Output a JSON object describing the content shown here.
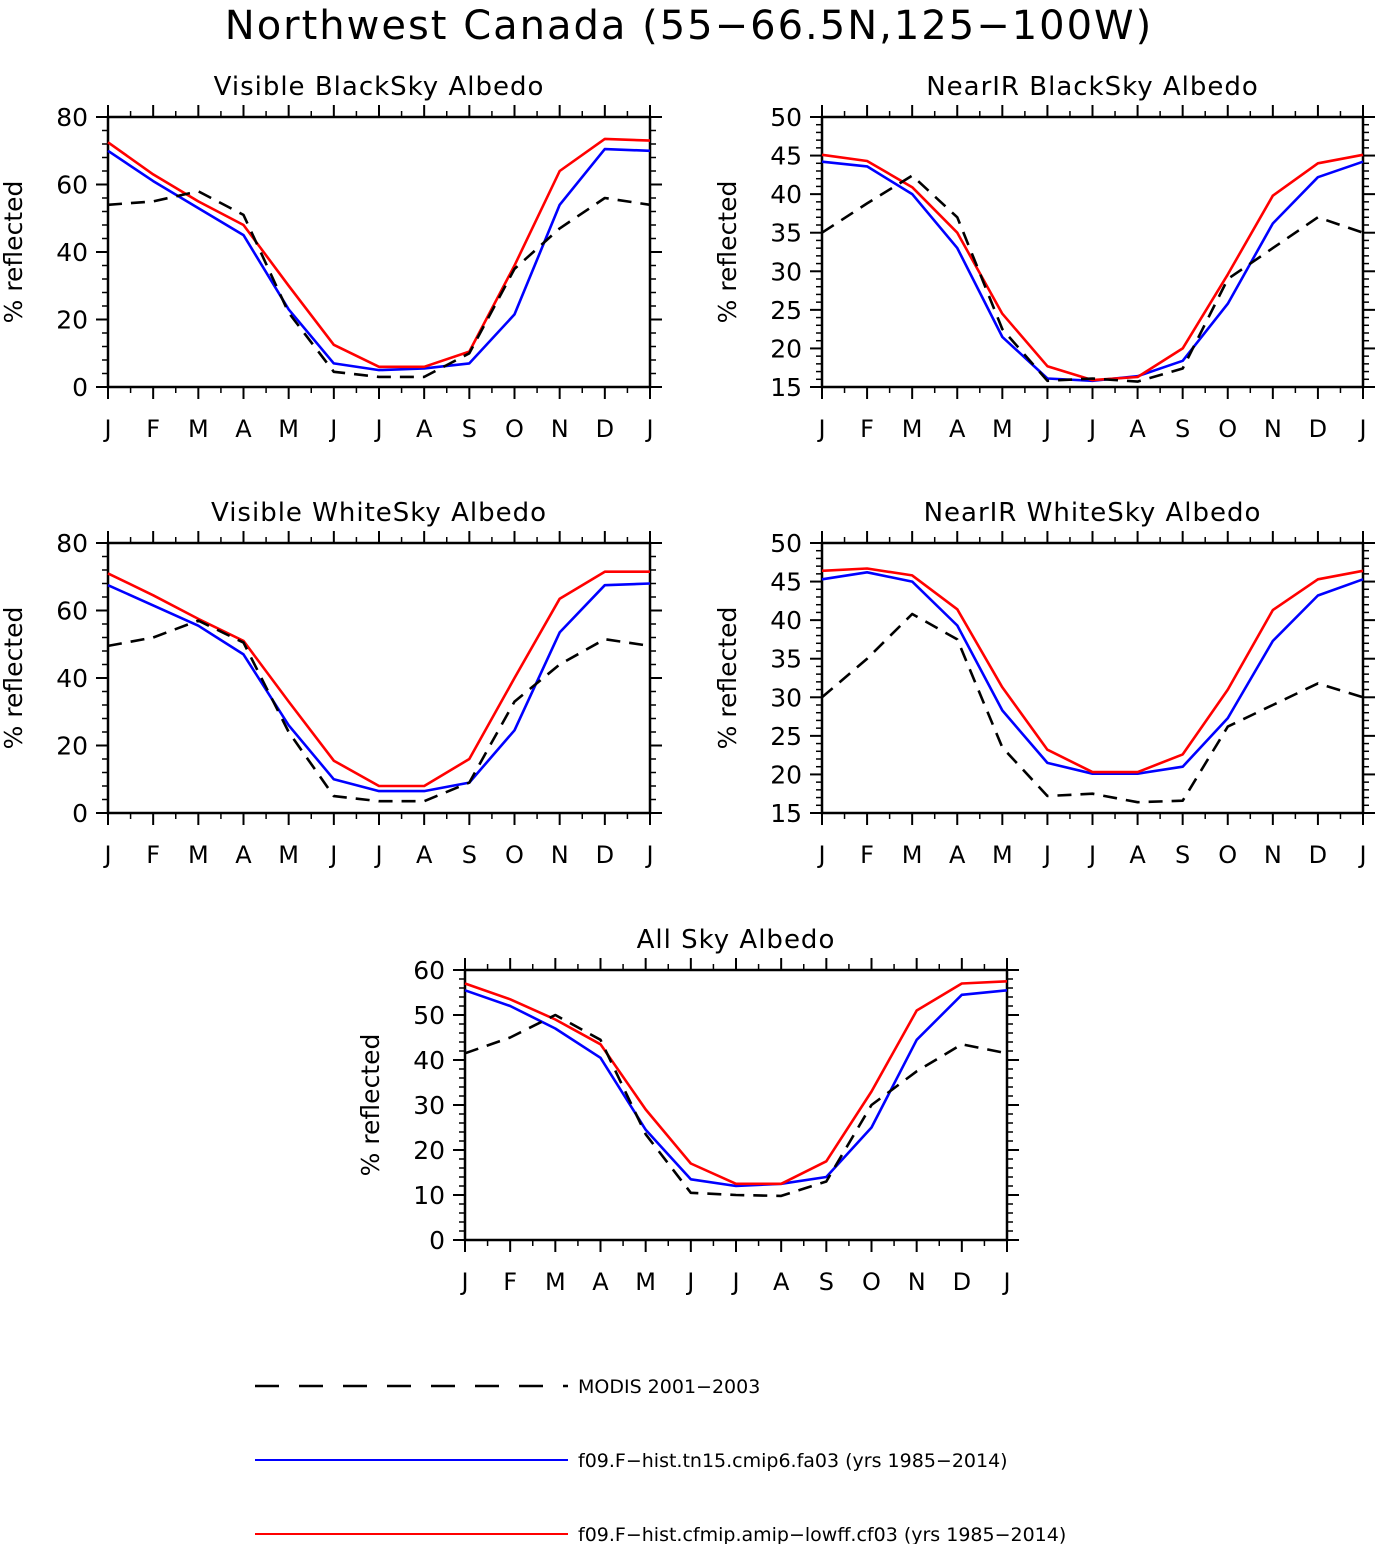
{
  "figure": {
    "title": "Northwest Canada (55−66.5N,125−100W)",
    "months": [
      "J",
      "F",
      "M",
      "A",
      "M",
      "J",
      "J",
      "A",
      "S",
      "O",
      "N",
      "D",
      "J"
    ]
  },
  "colors": {
    "modis": "#000000",
    "fa03": "#0000ff",
    "cf03": "#ff0000"
  },
  "legend": {
    "position": "bottom",
    "items": [
      {
        "key": "modis",
        "label": "MODIS 2001−2003",
        "style": "dashed"
      },
      {
        "key": "fa03",
        "label": "f09.F−hist.tn15.cmip6.fa03 (yrs 1985−2014)",
        "style": "solid"
      },
      {
        "key": "cf03",
        "label": "f09.F−hist.cfmip.amip−lowff.cf03 (yrs 1985−2014)",
        "style": "solid"
      }
    ]
  },
  "chart_data": [
    {
      "type": "line",
      "title": "Visible BlackSky Albedo",
      "ylabel": "% reflected",
      "x": [
        "J",
        "F",
        "M",
        "A",
        "M",
        "J",
        "J",
        "A",
        "S",
        "O",
        "N",
        "D",
        "J"
      ],
      "ylim": [
        0,
        80
      ],
      "yticks": [
        0,
        20,
        40,
        60,
        80
      ],
      "series": [
        {
          "name": "MODIS 2001−2003",
          "key": "modis",
          "values": [
            54,
            55,
            58,
            51,
            22,
            4.5,
            3,
            3,
            10,
            35,
            47,
            56,
            54
          ]
        },
        {
          "name": "f09.F−hist.tn15.cmip6.fa03 (yrs 1985−2014)",
          "key": "fa03",
          "values": [
            70,
            61,
            53,
            45,
            23,
            7,
            5,
            5.5,
            7,
            21.5,
            54,
            70.5,
            70
          ]
        },
        {
          "name": "f09.F−hist.cfmip.amip−lowff.cf03 (yrs 1985−2014)",
          "key": "cf03",
          "values": [
            72.5,
            63,
            55,
            48,
            30,
            12.5,
            6,
            6,
            10.5,
            36,
            64,
            73.5,
            73
          ]
        }
      ]
    },
    {
      "type": "line",
      "title": "NearIR BlackSky Albedo",
      "ylabel": "% reflected",
      "x": [
        "J",
        "F",
        "M",
        "A",
        "M",
        "J",
        "J",
        "A",
        "S",
        "O",
        "N",
        "D",
        "J"
      ],
      "ylim": [
        15,
        50
      ],
      "yticks": [
        15,
        20,
        25,
        30,
        35,
        40,
        45,
        50
      ],
      "series": [
        {
          "name": "MODIS 2001−2003",
          "key": "modis",
          "values": [
            35,
            38.8,
            42.4,
            37,
            22.5,
            15.8,
            16.1,
            15.7,
            17.4,
            29,
            33,
            37,
            35
          ]
        },
        {
          "name": "f09.F−hist.tn15.cmip6.fa03 (yrs 1985−2014)",
          "key": "fa03",
          "values": [
            44.2,
            43.6,
            40,
            33,
            21.5,
            16.1,
            15.8,
            16.4,
            18.4,
            25.8,
            36.2,
            42.2,
            44.2
          ]
        },
        {
          "name": "f09.F−hist.cfmip.amip−lowff.cf03 (yrs 1985−2014)",
          "key": "cf03",
          "values": [
            45.1,
            44.3,
            40.9,
            35,
            24.5,
            17.7,
            15.9,
            16.3,
            20,
            29.6,
            39.8,
            44,
            45.1
          ]
        }
      ]
    },
    {
      "type": "line",
      "title": "Visible WhiteSky Albedo",
      "ylabel": "% reflected",
      "x": [
        "J",
        "F",
        "M",
        "A",
        "M",
        "J",
        "J",
        "A",
        "S",
        "O",
        "N",
        "D",
        "J"
      ],
      "ylim": [
        0,
        80
      ],
      "yticks": [
        0,
        20,
        40,
        60,
        80
      ],
      "series": [
        {
          "name": "MODIS 2001−2003",
          "key": "modis",
          "values": [
            49.5,
            52,
            57,
            50.5,
            24,
            5,
            3.5,
            3.5,
            9,
            33,
            44,
            51.5,
            49.5
          ]
        },
        {
          "name": "f09.F−hist.tn15.cmip6.fa03 (yrs 1985−2014)",
          "key": "fa03",
          "values": [
            67.5,
            61.5,
            55.5,
            47,
            26,
            10,
            6.5,
            6.5,
            9,
            24.5,
            53.5,
            67.5,
            68
          ]
        },
        {
          "name": "f09.F−hist.cfmip.amip−lowff.cf03 (yrs 1985−2014)",
          "key": "cf03",
          "values": [
            71,
            64.5,
            57.5,
            51,
            33,
            15.5,
            8,
            8,
            16,
            40,
            63.5,
            71.5,
            71.5
          ]
        }
      ]
    },
    {
      "type": "line",
      "title": "NearIR WhiteSky Albedo",
      "ylabel": "% reflected",
      "x": [
        "J",
        "F",
        "M",
        "A",
        "M",
        "J",
        "J",
        "A",
        "S",
        "O",
        "N",
        "D",
        "J"
      ],
      "ylim": [
        15,
        50
      ],
      "yticks": [
        15,
        20,
        25,
        30,
        35,
        40,
        45,
        50
      ],
      "series": [
        {
          "name": "MODIS 2001−2003",
          "key": "modis",
          "values": [
            30,
            35,
            40.8,
            37.5,
            23.5,
            17.2,
            17.5,
            16.4,
            16.6,
            26.2,
            29,
            31.8,
            30
          ]
        },
        {
          "name": "f09.F−hist.tn15.cmip6.fa03 (yrs 1985−2014)",
          "key": "fa03",
          "values": [
            45.3,
            46.2,
            45,
            39.3,
            28.3,
            21.5,
            20.1,
            20.1,
            21,
            27.3,
            37.3,
            43.2,
            45.3
          ]
        },
        {
          "name": "f09.F−hist.cfmip.amip−lowff.cf03 (yrs 1985−2014)",
          "key": "cf03",
          "values": [
            46.4,
            46.7,
            45.8,
            41.4,
            31.3,
            23.2,
            20.3,
            20.3,
            22.6,
            31,
            41.3,
            45.3,
            46.4
          ]
        }
      ]
    },
    {
      "type": "line",
      "title": "All Sky Albedo",
      "ylabel": "% reflected",
      "x": [
        "J",
        "F",
        "M",
        "A",
        "M",
        "J",
        "J",
        "A",
        "S",
        "O",
        "N",
        "D",
        "J"
      ],
      "ylim": [
        0,
        60
      ],
      "yticks": [
        0,
        10,
        20,
        30,
        40,
        50,
        60
      ],
      "series": [
        {
          "name": "MODIS 2001−2003",
          "key": "modis",
          "values": [
            41.5,
            45,
            50,
            44.5,
            23.5,
            10.5,
            10,
            9.8,
            13,
            30,
            37.5,
            43.5,
            41.5
          ]
        },
        {
          "name": "f09.F−hist.tn15.cmip6.fa03 (yrs 1985−2014)",
          "key": "fa03",
          "values": [
            55.5,
            52,
            47,
            40.5,
            24.5,
            13.5,
            12,
            12.5,
            14,
            25,
            44.5,
            54.5,
            55.5
          ]
        },
        {
          "name": "f09.F−hist.cfmip.amip−lowff.cf03 (yrs 1985−2014)",
          "key": "cf03",
          "values": [
            57,
            53.5,
            49,
            43.5,
            29,
            17,
            12.5,
            12.5,
            17.5,
            33,
            51,
            57,
            57.5
          ]
        }
      ]
    }
  ]
}
